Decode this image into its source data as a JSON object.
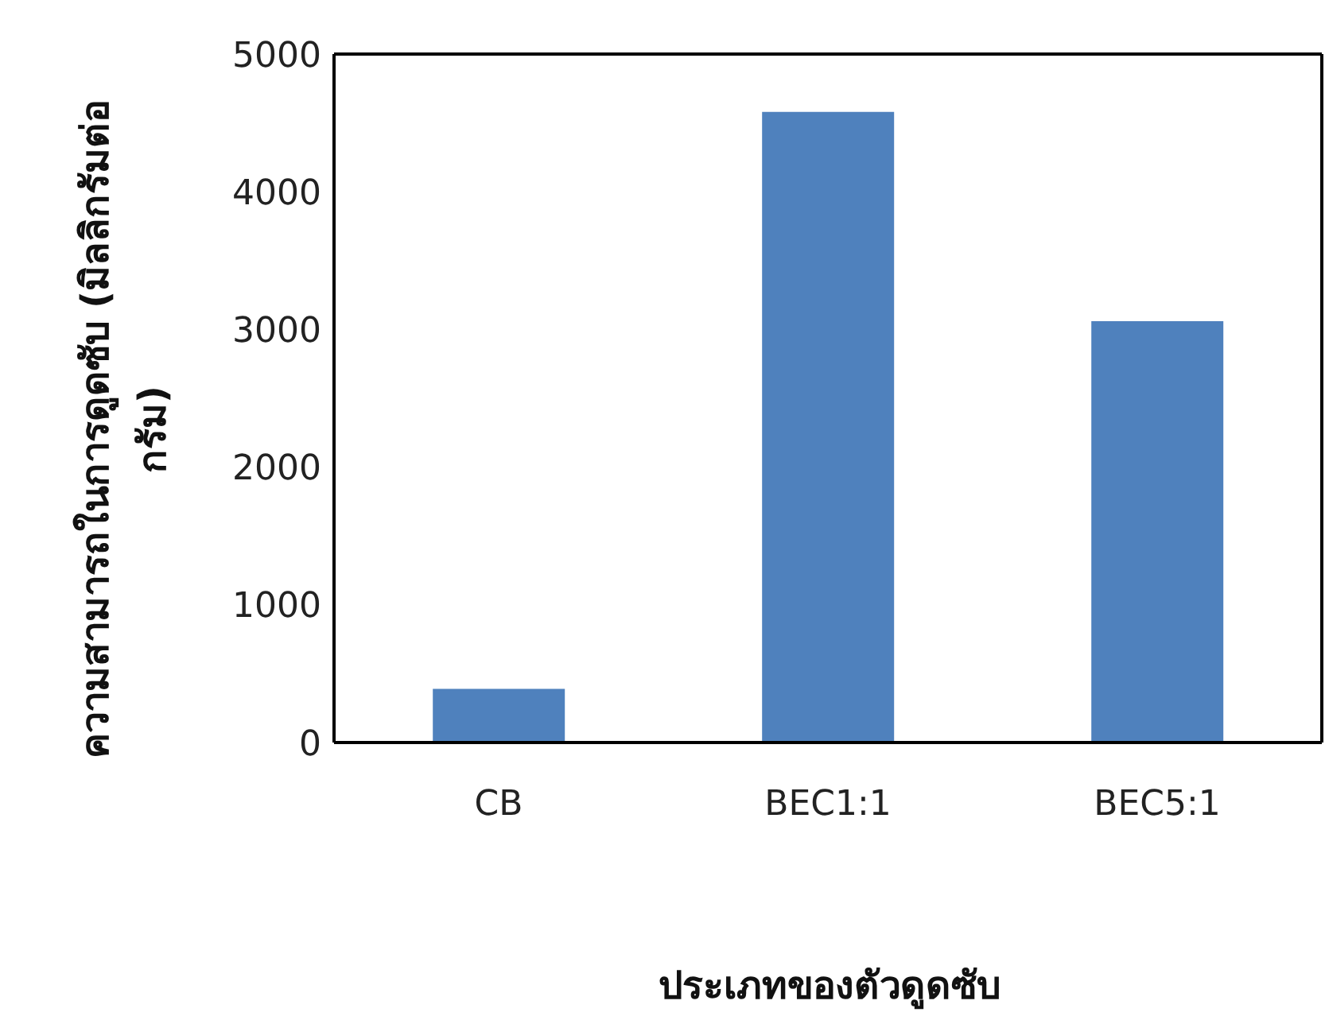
{
  "chart_data": {
    "type": "bar",
    "categories": [
      "CB",
      "BEC1:1",
      "BEC5:1"
    ],
    "values": [
      390,
      4580,
      3060
    ],
    "color": "#4f81bd",
    "xlabel": "ประเภทของตัวดูดซับ",
    "ylabel": "ความสามารถในการดูดซับ (มิลลิกรัมต่อกรัม)",
    "ylim": [
      0,
      5000
    ],
    "yticks": [
      0,
      1000,
      2000,
      3000,
      4000,
      5000
    ],
    "grid": false
  }
}
